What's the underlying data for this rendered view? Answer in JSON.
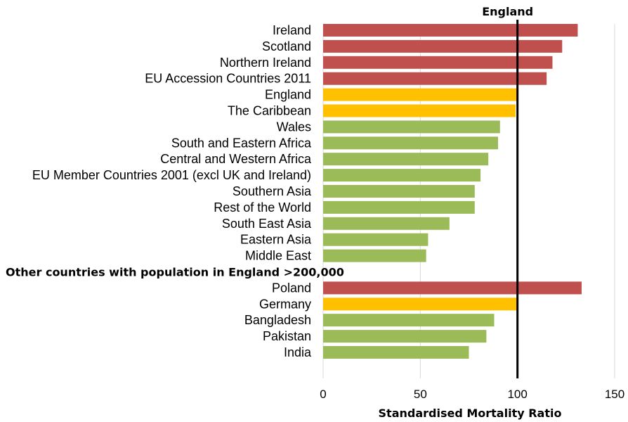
{
  "chart_data": {
    "type": "bar",
    "orientation": "horizontal",
    "title": "",
    "xlabel": "Standardised Mortality Ratio",
    "ylabel": "",
    "xlim": [
      0,
      150
    ],
    "ticks": [
      0,
      50,
      100,
      150
    ],
    "grid": true,
    "reference_line": {
      "value": 100,
      "label": "England"
    },
    "colors": {
      "above": "#c0504d",
      "similar": "#ffc000",
      "below": "#9bbb59"
    },
    "groups": [
      {
        "header": "",
        "items": [
          {
            "label": "Ireland",
            "value": 131,
            "color": "#c0504d"
          },
          {
            "label": "Scotland",
            "value": 123,
            "color": "#c0504d"
          },
          {
            "label": "Northern Ireland",
            "value": 118,
            "color": "#c0504d"
          },
          {
            "label": "EU Accession Countries 2011",
            "value": 115,
            "color": "#c0504d"
          },
          {
            "label": "England",
            "value": 100,
            "color": "#ffc000"
          },
          {
            "label": "The Caribbean",
            "value": 99,
            "color": "#ffc000"
          },
          {
            "label": "Wales",
            "value": 91,
            "color": "#9bbb59"
          },
          {
            "label": "South and Eastern Africa",
            "value": 90,
            "color": "#9bbb59"
          },
          {
            "label": "Central and Western Africa",
            "value": 85,
            "color": "#9bbb59"
          },
          {
            "label": "EU Member Countries 2001 (excl UK and Ireland)",
            "value": 81,
            "color": "#9bbb59"
          },
          {
            "label": "Southern Asia",
            "value": 78,
            "color": "#9bbb59"
          },
          {
            "label": "Rest of the World",
            "value": 78,
            "color": "#9bbb59"
          },
          {
            "label": "South East Asia",
            "value": 65,
            "color": "#9bbb59"
          },
          {
            "label": "Eastern Asia",
            "value": 54,
            "color": "#9bbb59"
          },
          {
            "label": "Middle East",
            "value": 53,
            "color": "#9bbb59"
          }
        ]
      },
      {
        "header": "Other countries with population in England >200,000",
        "items": [
          {
            "label": "Poland",
            "value": 133,
            "color": "#c0504d"
          },
          {
            "label": "Germany",
            "value": 100,
            "color": "#ffc000"
          },
          {
            "label": "Bangladesh",
            "value": 88,
            "color": "#9bbb59"
          },
          {
            "label": "Pakistan",
            "value": 84,
            "color": "#9bbb59"
          },
          {
            "label": "India",
            "value": 75,
            "color": "#9bbb59"
          }
        ]
      }
    ]
  }
}
